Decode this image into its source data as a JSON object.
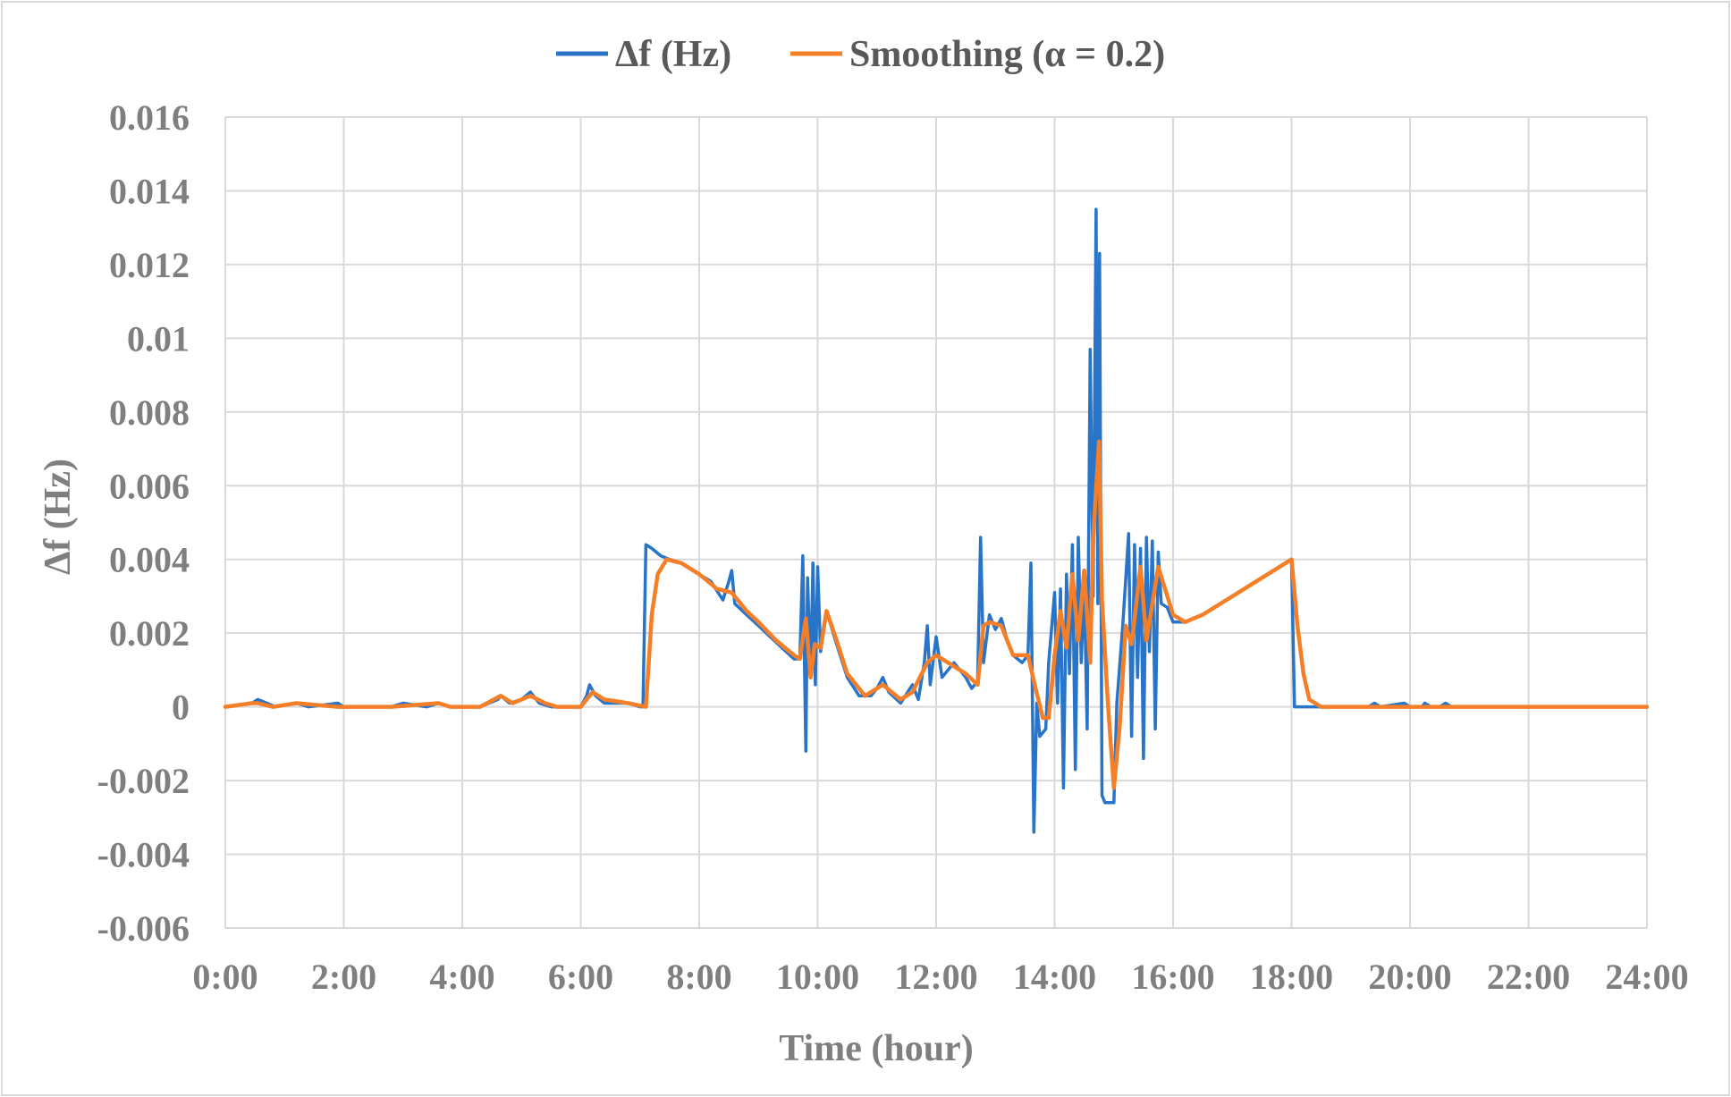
{
  "chart_data": {
    "type": "line",
    "title": "",
    "xlabel": "Time (hour)",
    "ylabel": "Δf (Hz)",
    "xlim": [
      0,
      24
    ],
    "ylim": [
      -0.006,
      0.016
    ],
    "grid": true,
    "legend": "top",
    "x_ticks": [
      "0:00",
      "2:00",
      "4:00",
      "6:00",
      "8:00",
      "10:00",
      "12:00",
      "14:00",
      "16:00",
      "18:00",
      "20:00",
      "22:00",
      "24:00"
    ],
    "y_ticks": [
      "0.016",
      "0.014",
      "0.012",
      "0.01",
      "0.008",
      "0.006",
      "0.004",
      "0.002",
      "0",
      "-0.002",
      "-0.004",
      "-0.006"
    ],
    "series": [
      {
        "name": "Δf (Hz)",
        "color": "#2874c8",
        "points": [
          [
            0,
            0
          ],
          [
            0.45,
            0.0001
          ],
          [
            0.55,
            0.0002
          ],
          [
            0.7,
            0.0001
          ],
          [
            0.85,
            0
          ],
          [
            1.2,
            0.0001
          ],
          [
            1.4,
            0
          ],
          [
            1.9,
            0.0001
          ],
          [
            2.0,
            0
          ],
          [
            2.8,
            0
          ],
          [
            3.0,
            0.0001
          ],
          [
            3.4,
            0
          ],
          [
            3.6,
            0.0001
          ],
          [
            3.8,
            0
          ],
          [
            4.3,
            0
          ],
          [
            4.6,
            0.0002
          ],
          [
            4.65,
            0.0003
          ],
          [
            4.8,
            0.0001
          ],
          [
            5.0,
            0.0002
          ],
          [
            5.15,
            0.0004
          ],
          [
            5.3,
            0.0001
          ],
          [
            5.5,
            0
          ],
          [
            6.0,
            0
          ],
          [
            6.1,
            0.0003
          ],
          [
            6.15,
            0.0006
          ],
          [
            6.25,
            0.0003
          ],
          [
            6.4,
            0.0001
          ],
          [
            6.8,
            0.0001
          ],
          [
            7.0,
            0
          ],
          [
            7.05,
            0
          ],
          [
            7.1,
            0.0044
          ],
          [
            7.2,
            0.0043
          ],
          [
            7.35,
            0.0041
          ],
          [
            7.5,
            0.004
          ],
          [
            7.7,
            0.0039
          ],
          [
            8.0,
            0.0036
          ],
          [
            8.2,
            0.0034
          ],
          [
            8.4,
            0.0029
          ],
          [
            8.5,
            0.0034
          ],
          [
            8.55,
            0.0037
          ],
          [
            8.6,
            0.0028
          ],
          [
            8.8,
            0.0025
          ],
          [
            9.0,
            0.0022
          ],
          [
            9.2,
            0.0019
          ],
          [
            9.4,
            0.0016
          ],
          [
            9.6,
            0.0013
          ],
          [
            9.7,
            0.0013
          ],
          [
            9.75,
            0.0041
          ],
          [
            9.8,
            -0.0012
          ],
          [
            9.83,
            0.0035
          ],
          [
            9.88,
            0.0008
          ],
          [
            9.92,
            0.0039
          ],
          [
            9.96,
            0.0006
          ],
          [
            10.0,
            0.0038
          ],
          [
            10.05,
            0.0015
          ],
          [
            10.15,
            0.0026
          ],
          [
            10.3,
            0.0018
          ],
          [
            10.5,
            0.0008
          ],
          [
            10.7,
            0.0003
          ],
          [
            10.9,
            0.0003
          ],
          [
            11.0,
            0.0005
          ],
          [
            11.1,
            0.0008
          ],
          [
            11.2,
            0.0004
          ],
          [
            11.4,
            0.0001
          ],
          [
            11.6,
            0.0006
          ],
          [
            11.7,
            0.0002
          ],
          [
            11.8,
            0.0012
          ],
          [
            11.85,
            0.0022
          ],
          [
            11.9,
            0.0006
          ],
          [
            12.0,
            0.0019
          ],
          [
            12.1,
            0.0008
          ],
          [
            12.3,
            0.0012
          ],
          [
            12.5,
            0.0008
          ],
          [
            12.6,
            0.0005
          ],
          [
            12.7,
            0.0007
          ],
          [
            12.75,
            0.0046
          ],
          [
            12.8,
            0.0012
          ],
          [
            12.9,
            0.0025
          ],
          [
            13.0,
            0.0021
          ],
          [
            13.1,
            0.0024
          ],
          [
            13.2,
            0.0018
          ],
          [
            13.3,
            0.0014
          ],
          [
            13.45,
            0.0012
          ],
          [
            13.55,
            0.0014
          ],
          [
            13.6,
            0.0039
          ],
          [
            13.65,
            -0.0034
          ],
          [
            13.7,
            0.0001
          ],
          [
            13.75,
            -0.0008
          ],
          [
            13.85,
            -0.0006
          ],
          [
            13.9,
            0.0012
          ],
          [
            14.0,
            0.0031
          ],
          [
            14.05,
            0.0001
          ],
          [
            14.1,
            0.0032
          ],
          [
            14.15,
            -0.0022
          ],
          [
            14.2,
            0.0036
          ],
          [
            14.25,
            0.0009
          ],
          [
            14.3,
            0.0044
          ],
          [
            14.35,
            -0.0017
          ],
          [
            14.4,
            0.0046
          ],
          [
            14.45,
            0.0012
          ],
          [
            14.5,
            0.0034
          ],
          [
            14.55,
            -0.0006
          ],
          [
            14.6,
            0.0097
          ],
          [
            14.65,
            0.003
          ],
          [
            14.7,
            0.0135
          ],
          [
            14.73,
            0.0028
          ],
          [
            14.76,
            0.0123
          ],
          [
            14.8,
            -0.0024
          ],
          [
            14.85,
            -0.0026
          ],
          [
            15.0,
            -0.0026
          ],
          [
            15.05,
            0.0001
          ],
          [
            15.15,
            0.0022
          ],
          [
            15.25,
            0.0047
          ],
          [
            15.3,
            -0.0008
          ],
          [
            15.35,
            0.0044
          ],
          [
            15.4,
            0.0008
          ],
          [
            15.45,
            0.0043
          ],
          [
            15.5,
            -0.0014
          ],
          [
            15.55,
            0.0046
          ],
          [
            15.6,
            0.0015
          ],
          [
            15.65,
            0.0045
          ],
          [
            15.7,
            -0.0006
          ],
          [
            15.75,
            0.0042
          ],
          [
            15.8,
            0.0028
          ],
          [
            15.9,
            0.0027
          ],
          [
            16.0,
            0.0023
          ],
          [
            16.2,
            0.0023
          ],
          [
            16.5,
            0.0025
          ],
          [
            17.0,
            0.003
          ],
          [
            17.5,
            0.0035
          ],
          [
            18.0,
            0.004
          ],
          [
            18.05,
            0
          ],
          [
            18.5,
            0
          ],
          [
            19.3,
            0
          ],
          [
            19.4,
            0.0001
          ],
          [
            19.5,
            0
          ],
          [
            19.9,
            0.0001
          ],
          [
            20.0,
            0
          ],
          [
            20.2,
            0
          ],
          [
            20.25,
            0.0001
          ],
          [
            20.35,
            0
          ],
          [
            20.5,
            0
          ],
          [
            20.6,
            0.0001
          ],
          [
            20.7,
            0
          ],
          [
            24.0,
            0
          ]
        ]
      },
      {
        "name": "Smoothing (α = 0.2)",
        "color": "#f47f28",
        "points": [
          [
            0,
            0
          ],
          [
            0.45,
            0.0001
          ],
          [
            0.55,
            0.0001
          ],
          [
            0.8,
            0
          ],
          [
            1.2,
            0.0001
          ],
          [
            1.9,
            0
          ],
          [
            2.8,
            0
          ],
          [
            3.6,
            0.0001
          ],
          [
            3.8,
            0
          ],
          [
            4.3,
            0
          ],
          [
            4.65,
            0.0003
          ],
          [
            4.85,
            0.0001
          ],
          [
            5.15,
            0.0003
          ],
          [
            5.4,
            0.0001
          ],
          [
            5.6,
            0
          ],
          [
            6.0,
            0
          ],
          [
            6.2,
            0.0004
          ],
          [
            6.4,
            0.0002
          ],
          [
            6.8,
            0.0001
          ],
          [
            7.1,
            0
          ],
          [
            7.2,
            0.0025
          ],
          [
            7.3,
            0.0036
          ],
          [
            7.45,
            0.004
          ],
          [
            7.7,
            0.0039
          ],
          [
            8.0,
            0.0036
          ],
          [
            8.3,
            0.0032
          ],
          [
            8.55,
            0.0031
          ],
          [
            8.8,
            0.0026
          ],
          [
            9.0,
            0.0023
          ],
          [
            9.3,
            0.0018
          ],
          [
            9.6,
            0.0014
          ],
          [
            9.7,
            0.0013
          ],
          [
            9.8,
            0.0024
          ],
          [
            9.88,
            0.0008
          ],
          [
            9.95,
            0.0017
          ],
          [
            10.05,
            0.0016
          ],
          [
            10.15,
            0.0026
          ],
          [
            10.3,
            0.0019
          ],
          [
            10.5,
            0.0009
          ],
          [
            10.8,
            0.0003
          ],
          [
            11.1,
            0.0006
          ],
          [
            11.4,
            0.0002
          ],
          [
            11.6,
            0.0004
          ],
          [
            11.85,
            0.0012
          ],
          [
            12.0,
            0.0014
          ],
          [
            12.3,
            0.0011
          ],
          [
            12.5,
            0.0009
          ],
          [
            12.7,
            0.0006
          ],
          [
            12.8,
            0.0022
          ],
          [
            12.9,
            0.0023
          ],
          [
            13.1,
            0.0022
          ],
          [
            13.3,
            0.0014
          ],
          [
            13.55,
            0.0014
          ],
          [
            13.65,
            0.0007
          ],
          [
            13.8,
            -0.0003
          ],
          [
            13.9,
            -0.0003
          ],
          [
            14.0,
            0.0014
          ],
          [
            14.1,
            0.0026
          ],
          [
            14.2,
            0.0016
          ],
          [
            14.3,
            0.0036
          ],
          [
            14.4,
            0.0018
          ],
          [
            14.5,
            0.0037
          ],
          [
            14.6,
            0.0012
          ],
          [
            14.65,
            0.0046
          ],
          [
            14.75,
            0.0072
          ],
          [
            14.8,
            0.0029
          ],
          [
            14.9,
            0.0001
          ],
          [
            15.0,
            -0.0022
          ],
          [
            15.1,
            -0.0005
          ],
          [
            15.2,
            0.0022
          ],
          [
            15.3,
            0.0017
          ],
          [
            15.45,
            0.0038
          ],
          [
            15.55,
            0.0018
          ],
          [
            15.75,
            0.0038
          ],
          [
            16.0,
            0.0025
          ],
          [
            16.2,
            0.0023
          ],
          [
            16.5,
            0.0025
          ],
          [
            17.0,
            0.003
          ],
          [
            17.5,
            0.0035
          ],
          [
            18.0,
            0.004
          ],
          [
            18.1,
            0.0022
          ],
          [
            18.2,
            0.0009
          ],
          [
            18.3,
            0.0002
          ],
          [
            18.5,
            0
          ],
          [
            24.0,
            0
          ]
        ]
      }
    ]
  }
}
